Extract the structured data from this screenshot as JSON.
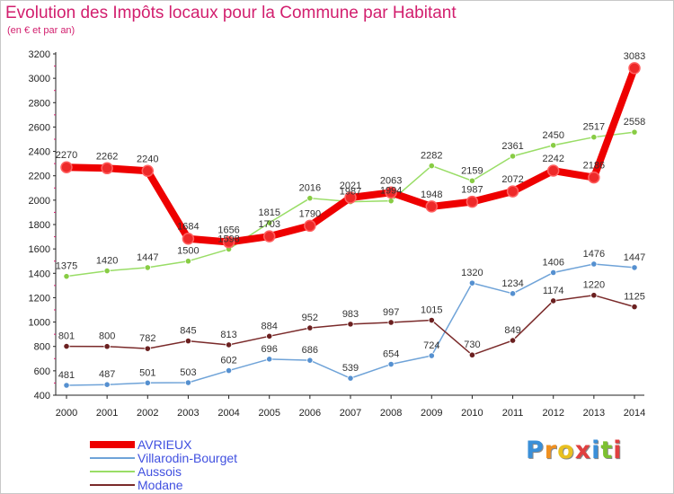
{
  "title": "Evolution des Impôts locaux pour la Commune par Habitant",
  "subtitle": "(en € et par an)",
  "brand": {
    "letters": [
      "P",
      "r",
      "o",
      "x",
      "i",
      "t",
      "i"
    ],
    "colors": [
      "#3a8fd8",
      "#f09020",
      "#e8c020",
      "#e04040",
      "#3a8fd8",
      "#7cc030",
      "#e04040"
    ]
  },
  "chart_data": {
    "type": "line",
    "x": [
      "2000",
      "2001",
      "2002",
      "2003",
      "2004",
      "2005",
      "2006",
      "2007",
      "2008",
      "2009",
      "2010",
      "2011",
      "2012",
      "2013",
      "2014"
    ],
    "ylim": [
      400,
      3200
    ],
    "yticks": [
      400,
      600,
      800,
      1000,
      1200,
      1400,
      1600,
      1800,
      2000,
      2200,
      2400,
      2600,
      2800,
      3000,
      3200
    ],
    "grid": false,
    "legend_position": "bottom-left",
    "series": [
      {
        "name": "AVRIEUX",
        "color": "#ee0000",
        "marker": "#ee2a2a",
        "emphasis": "thick",
        "values": [
          2270,
          2262,
          2240,
          1684,
          1656,
          1703,
          1790,
          2021,
          2063,
          1948,
          1987,
          2072,
          2242,
          2186,
          3083
        ],
        "labels": [
          "2270",
          "2262",
          "2240",
          "1684",
          "1656",
          "1703",
          "1790",
          "2021",
          "2063",
          "1948",
          "1987",
          "2072",
          "2242",
          "2186",
          "3083"
        ]
      },
      {
        "name": "Villarodin-Bourget",
        "color": "#6fa3d8",
        "marker": "#5590d0",
        "emphasis": "thin",
        "values": [
          481,
          487,
          501,
          503,
          602,
          696,
          686,
          539,
          654,
          724,
          1320,
          1234,
          1406,
          1476,
          1447
        ],
        "labels": [
          "481",
          "487",
          "501",
          "503",
          "602",
          "696",
          "686",
          "539",
          "654",
          "724",
          "1320",
          "1234",
          "1406",
          "1476",
          "1447"
        ]
      },
      {
        "name": "Aussois",
        "color": "#99dd66",
        "marker": "#88cc44",
        "emphasis": "thin",
        "values": [
          1375,
          1420,
          1447,
          1500,
          1598,
          1815,
          2016,
          1987,
          1994,
          2282,
          2159,
          2361,
          2450,
          2517,
          2558
        ],
        "labels": [
          "1375",
          "1420",
          "1447",
          "1500",
          "1598",
          "1815",
          "2016",
          "1987",
          "1994",
          "2282",
          "2159",
          "2361",
          "2450",
          "2517",
          "2558"
        ]
      },
      {
        "name": "Modane",
        "color": "#7a2a2a",
        "marker": "#6b2020",
        "emphasis": "thin",
        "values": [
          801,
          800,
          782,
          845,
          813,
          884,
          952,
          983,
          997,
          1015,
          730,
          849,
          1174,
          1220,
          1125
        ],
        "labels": [
          "801",
          "800",
          "782",
          "845",
          "813",
          "884",
          "952",
          "983",
          "997",
          "1015",
          "730",
          "849",
          "1174",
          "1220",
          "1125"
        ]
      }
    ]
  }
}
